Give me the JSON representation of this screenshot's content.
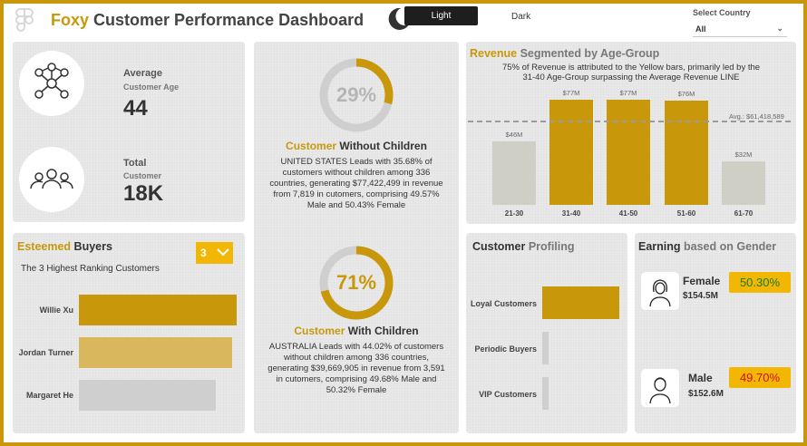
{
  "header": {
    "title_brand": "Foxy",
    "title_rest": " Customer Performance Dashboard",
    "theme_light": "Light",
    "theme_dark": "Dark",
    "country_label": "Select Country",
    "country_value": "All"
  },
  "kpis": {
    "age_label": "Average",
    "age_sub": "Customer Age",
    "age_value": "44",
    "total_label": "Total",
    "total_sub": "Customer",
    "total_value": "18K"
  },
  "without_children": {
    "percent": "29%",
    "percent_value": 29,
    "title_gold": "Customer",
    "title_dark": " Without Children",
    "description": "UNITED STATES Leads with 35.68% of customers without children among 336 countries, generating $77,422,499 in revenue from 7,819 in cutomers, comprising 49.57% Male and 50.43% Female"
  },
  "with_children": {
    "percent": "71%",
    "percent_value": 71,
    "title_gold": "Customer",
    "title_dark": " With Children",
    "description": "AUSTRALIA Leads with 44.02% of customers without children among 336 countries, generating $39,669,905 in revenue from 3,591 in cutomers, comprising 49.68% Male and 50.32% Female"
  },
  "buyers": {
    "title_gold": "Esteemed",
    "title_dark": " Buyers",
    "subtitle": "The 3 Highest Ranking Customers",
    "rank": "3",
    "items": [
      {
        "name": "Willie Xu",
        "value": 100,
        "color": "#c9980a"
      },
      {
        "name": "Jordan Turner",
        "value": 97,
        "color": "#d9b75c"
      },
      {
        "name": "Margaret He",
        "value": 87,
        "color": "#cfcfcf"
      }
    ]
  },
  "revenue": {
    "title_gold": "Revenue",
    "title_dark": " Segmented by Age-Group",
    "description_line1": "75% of Revenue is attributed to the Yellow bars, primarily led by the",
    "description_line2": "31-40 Age-Group surpassing the Average Revenue LINE",
    "avg_label": "Avg.: $61,418,589",
    "avg_value": 61.4,
    "chart_data": {
      "type": "bar",
      "categories": [
        "21-30",
        "31-40",
        "41-50",
        "51-60",
        "61-70"
      ],
      "values": [
        46,
        77,
        77,
        76,
        32
      ],
      "labels": [
        "$46M",
        "$77M",
        "$77M",
        "$76M",
        "$32M"
      ],
      "colors": [
        "#cfcfc6",
        "#c9980a",
        "#c9980a",
        "#c9980a",
        "#cfcfc6"
      ],
      "ylim": [
        0,
        82
      ]
    }
  },
  "profiling": {
    "title_dark": "Customer",
    "title_muted": " Profiling",
    "items": [
      {
        "name": "Loyal Customers",
        "value": 100
      },
      {
        "name": "Periodic Buyers",
        "value": 8
      },
      {
        "name": "VIP Customers",
        "value": 8
      }
    ]
  },
  "gender": {
    "title_dark": "Earning",
    "title_muted": " based on Gender",
    "female_name": "Female",
    "female_amount": "$154.5M",
    "female_pct": "50.30%",
    "female_color": "#1a7a1a",
    "male_name": "Male",
    "male_amount": "$152.6M",
    "male_pct": "49.70%",
    "male_color": "#d01010"
  }
}
